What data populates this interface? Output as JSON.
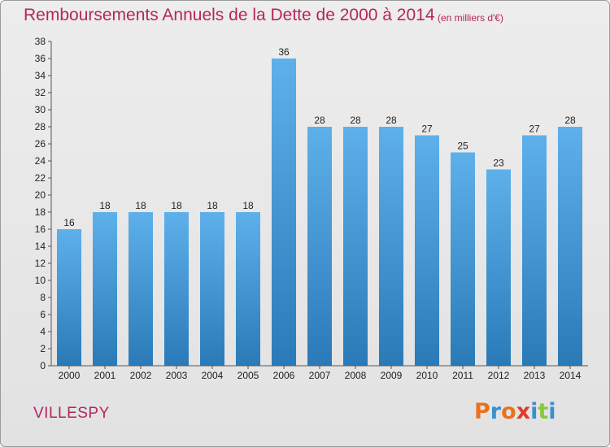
{
  "header": {
    "title": "Remboursements Annuels de la Dette de 2000 à 2014",
    "subtitle": "(en milliers d'€)"
  },
  "footer": {
    "commune": "VILLESPY",
    "logo": "Proxiti"
  },
  "colors": {
    "title": "#b5255f",
    "bar_top": "#5eb0ea",
    "bar_bottom": "#2a7ab8",
    "background": "#e8e8e8",
    "logo_letters": [
      "#e8731c",
      "#3a8fd0",
      "#e8731c",
      "#e03a2e",
      "#3a8fd0",
      "#8cc63f",
      "#3a8fd0"
    ]
  },
  "chart_data": {
    "type": "bar",
    "title": "Remboursements Annuels de la Dette de 2000 à 2014",
    "subtitle": "(en milliers d'€)",
    "categories": [
      "2000",
      "2001",
      "2002",
      "2003",
      "2004",
      "2005",
      "2006",
      "2007",
      "2008",
      "2009",
      "2010",
      "2011",
      "2012",
      "2013",
      "2014"
    ],
    "values": [
      16,
      18,
      18,
      18,
      18,
      18,
      36,
      28,
      28,
      28,
      27,
      25,
      23,
      27,
      28
    ],
    "ylim": [
      0,
      38
    ],
    "yticks": [
      0,
      2,
      4,
      6,
      8,
      10,
      12,
      14,
      16,
      18,
      20,
      22,
      24,
      26,
      28,
      30,
      32,
      34,
      36,
      38
    ],
    "grid": false,
    "data_labels": true
  }
}
